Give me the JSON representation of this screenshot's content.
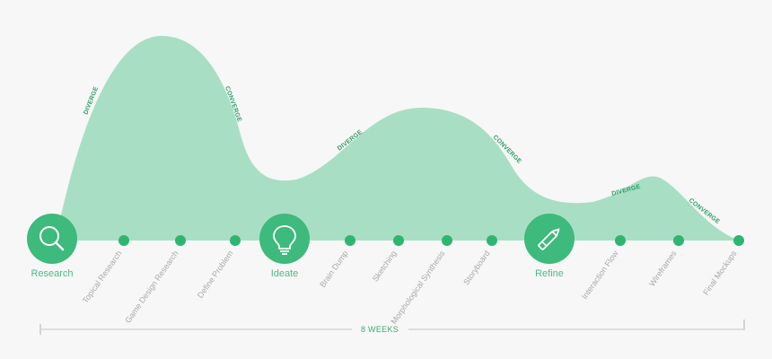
{
  "colors": {
    "background": "#f7f7f7",
    "wave_fill": "#a8dfc4",
    "accent": "#3dba7c",
    "dot": "#2fb572",
    "step_text": "#a9a9a9",
    "timeline_line": "#d0d0d0",
    "diverge_text": "#2f9e6a"
  },
  "phases": [
    {
      "label": "Research",
      "icon": "magnifier-icon"
    },
    {
      "label": "Ideate",
      "icon": "lightbulb-icon"
    },
    {
      "label": "Refine",
      "icon": "pen-icon"
    }
  ],
  "steps": [
    "Topical Research",
    "Game Design Research",
    "Define Problem",
    "Brain Dump",
    "Sketching",
    "Morphological Synthesis",
    "Storyboard",
    "Interaction Flow",
    "Wireframes",
    "Final Mockups"
  ],
  "wave_labels": [
    "DIVERGE",
    "CONVERGE",
    "DIVERGE",
    "CONVERGE",
    "DIVERGE",
    "CONVERGE"
  ],
  "duration": "8 WEEKS"
}
